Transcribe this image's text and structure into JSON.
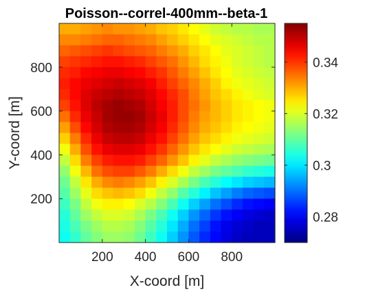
{
  "chart_data": {
    "type": "heatmap",
    "title": "Poisson--correl-400mm--beta-1",
    "xlabel": "X-coord [m]",
    "ylabel": "Y-coord [m]",
    "xlim": [
      0,
      1000
    ],
    "ylim": [
      0,
      1000
    ],
    "x_ticks": [
      200,
      400,
      600,
      800
    ],
    "y_ticks": [
      200,
      400,
      600,
      800
    ],
    "colorbar": {
      "colormap": "jet",
      "clim": [
        0.27,
        0.355
      ],
      "ticks": [
        0.28,
        0.3,
        0.32,
        0.34
      ],
      "tick_labels": [
        "0.28",
        "0.3",
        "0.32",
        "0.34"
      ]
    },
    "grid": {
      "columns": 20,
      "rows": 20,
      "cell_size": 50,
      "x_centers": [
        25,
        75,
        125,
        175,
        225,
        275,
        325,
        375,
        425,
        475,
        525,
        575,
        625,
        675,
        725,
        775,
        825,
        875,
        925,
        975
      ],
      "y_centers_top_to_bottom": [
        975,
        925,
        875,
        825,
        775,
        725,
        675,
        625,
        575,
        525,
        475,
        425,
        375,
        325,
        275,
        225,
        175,
        125,
        75,
        25
      ],
      "values": [
        [
          0.33,
          0.33,
          0.331,
          0.332,
          0.333,
          0.332,
          0.332,
          0.331,
          0.33,
          0.328,
          0.327,
          0.325,
          0.323,
          0.321,
          0.319,
          0.318,
          0.317,
          0.317,
          0.316,
          0.316
        ],
        [
          0.333,
          0.333,
          0.334,
          0.335,
          0.336,
          0.336,
          0.335,
          0.334,
          0.333,
          0.331,
          0.329,
          0.327,
          0.325,
          0.323,
          0.321,
          0.32,
          0.319,
          0.318,
          0.317,
          0.317
        ],
        [
          0.336,
          0.337,
          0.338,
          0.339,
          0.34,
          0.339,
          0.338,
          0.337,
          0.336,
          0.334,
          0.332,
          0.33,
          0.327,
          0.325,
          0.323,
          0.321,
          0.32,
          0.319,
          0.318,
          0.317
        ],
        [
          0.339,
          0.34,
          0.341,
          0.342,
          0.343,
          0.343,
          0.342,
          0.341,
          0.339,
          0.337,
          0.335,
          0.332,
          0.329,
          0.326,
          0.324,
          0.322,
          0.32,
          0.319,
          0.318,
          0.317
        ],
        [
          0.341,
          0.342,
          0.344,
          0.345,
          0.346,
          0.346,
          0.345,
          0.344,
          0.342,
          0.34,
          0.337,
          0.334,
          0.331,
          0.328,
          0.325,
          0.323,
          0.321,
          0.32,
          0.319,
          0.318
        ],
        [
          0.342,
          0.344,
          0.346,
          0.347,
          0.348,
          0.349,
          0.348,
          0.347,
          0.345,
          0.342,
          0.339,
          0.336,
          0.333,
          0.33,
          0.327,
          0.324,
          0.322,
          0.321,
          0.32,
          0.319
        ],
        [
          0.341,
          0.344,
          0.347,
          0.349,
          0.35,
          0.351,
          0.35,
          0.349,
          0.347,
          0.344,
          0.341,
          0.338,
          0.334,
          0.331,
          0.328,
          0.326,
          0.324,
          0.322,
          0.321,
          0.32
        ],
        [
          0.339,
          0.343,
          0.347,
          0.35,
          0.352,
          0.353,
          0.352,
          0.351,
          0.348,
          0.345,
          0.342,
          0.338,
          0.335,
          0.332,
          0.329,
          0.327,
          0.325,
          0.324,
          0.323,
          0.322
        ],
        [
          0.335,
          0.341,
          0.346,
          0.349,
          0.352,
          0.353,
          0.353,
          0.352,
          0.349,
          0.346,
          0.342,
          0.338,
          0.334,
          0.331,
          0.329,
          0.327,
          0.325,
          0.324,
          0.323,
          0.322
        ],
        [
          0.331,
          0.338,
          0.344,
          0.348,
          0.351,
          0.352,
          0.352,
          0.351,
          0.348,
          0.345,
          0.341,
          0.337,
          0.333,
          0.33,
          0.328,
          0.326,
          0.324,
          0.323,
          0.322,
          0.321
        ],
        [
          0.327,
          0.334,
          0.341,
          0.346,
          0.349,
          0.35,
          0.35,
          0.349,
          0.346,
          0.343,
          0.339,
          0.335,
          0.331,
          0.328,
          0.326,
          0.324,
          0.322,
          0.321,
          0.32,
          0.319
        ],
        [
          0.322,
          0.33,
          0.338,
          0.343,
          0.346,
          0.347,
          0.347,
          0.346,
          0.343,
          0.34,
          0.336,
          0.332,
          0.328,
          0.325,
          0.323,
          0.321,
          0.319,
          0.318,
          0.317,
          0.316
        ],
        [
          0.318,
          0.326,
          0.334,
          0.339,
          0.342,
          0.343,
          0.343,
          0.342,
          0.339,
          0.336,
          0.332,
          0.328,
          0.324,
          0.321,
          0.318,
          0.316,
          0.314,
          0.313,
          0.312,
          0.311
        ],
        [
          0.314,
          0.322,
          0.329,
          0.335,
          0.338,
          0.339,
          0.339,
          0.337,
          0.334,
          0.33,
          0.326,
          0.322,
          0.318,
          0.315,
          0.312,
          0.31,
          0.308,
          0.306,
          0.305,
          0.304
        ],
        [
          0.311,
          0.318,
          0.325,
          0.33,
          0.333,
          0.334,
          0.333,
          0.331,
          0.328,
          0.324,
          0.32,
          0.316,
          0.312,
          0.308,
          0.305,
          0.302,
          0.3,
          0.298,
          0.297,
          0.296
        ],
        [
          0.309,
          0.315,
          0.321,
          0.326,
          0.328,
          0.329,
          0.328,
          0.326,
          0.322,
          0.318,
          0.314,
          0.309,
          0.305,
          0.301,
          0.297,
          0.294,
          0.291,
          0.289,
          0.288,
          0.287
        ],
        [
          0.307,
          0.312,
          0.318,
          0.322,
          0.324,
          0.324,
          0.323,
          0.32,
          0.317,
          0.313,
          0.308,
          0.303,
          0.298,
          0.294,
          0.29,
          0.287,
          0.284,
          0.282,
          0.281,
          0.28
        ],
        [
          0.305,
          0.31,
          0.315,
          0.318,
          0.32,
          0.32,
          0.319,
          0.316,
          0.312,
          0.308,
          0.303,
          0.298,
          0.293,
          0.289,
          0.285,
          0.282,
          0.28,
          0.278,
          0.277,
          0.276
        ],
        [
          0.304,
          0.308,
          0.312,
          0.315,
          0.317,
          0.317,
          0.316,
          0.313,
          0.309,
          0.305,
          0.3,
          0.295,
          0.29,
          0.286,
          0.282,
          0.279,
          0.277,
          0.276,
          0.275,
          0.275
        ],
        [
          0.303,
          0.306,
          0.31,
          0.313,
          0.315,
          0.315,
          0.314,
          0.311,
          0.307,
          0.303,
          0.298,
          0.293,
          0.288,
          0.284,
          0.281,
          0.278,
          0.276,
          0.275,
          0.275,
          0.275
        ]
      ]
    }
  }
}
